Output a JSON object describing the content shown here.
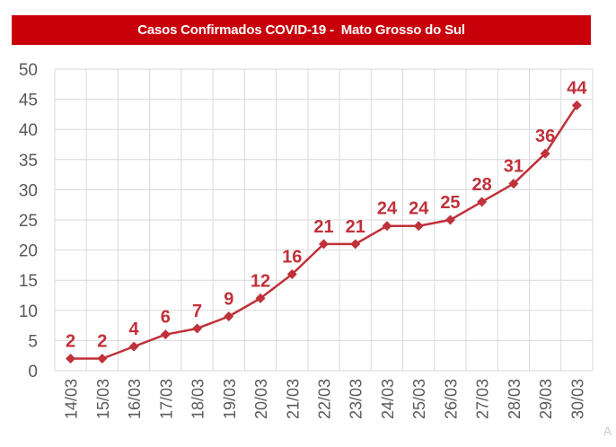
{
  "chart_data": {
    "type": "line",
    "title": "Casos Confirmados COVID-19 -  Mato Grosso do Sul",
    "xlabel": "",
    "ylabel": "",
    "categories": [
      "14/03",
      "15/03",
      "16/03",
      "17/03",
      "18/03",
      "19/03",
      "20/03",
      "21/03",
      "22/03",
      "23/03",
      "24/03",
      "25/03",
      "26/03",
      "27/03",
      "28/03",
      "29/03",
      "30/03"
    ],
    "series": [
      {
        "name": "Casos Confirmados",
        "values": [
          2,
          2,
          4,
          6,
          7,
          9,
          12,
          16,
          21,
          21,
          24,
          24,
          25,
          28,
          31,
          36,
          44
        ],
        "color": "#c0313a",
        "marker": "diamond"
      }
    ],
    "ylim": [
      0,
      50
    ],
    "yticks": [
      0,
      5,
      10,
      15,
      20,
      25,
      30,
      35,
      40,
      45,
      50
    ],
    "grid": true,
    "legend": "none",
    "data_labels": true
  },
  "colors": {
    "title_bg": "#c8000a",
    "title_text": "#ffffff",
    "series": "#c0313a",
    "grid": "#d9d9d9",
    "tick_text": "#595959"
  },
  "corner_glyph": "A"
}
